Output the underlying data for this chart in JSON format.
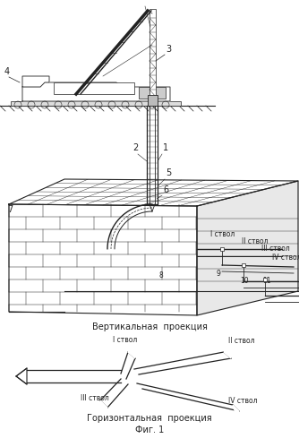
{
  "bg": "#ffffff",
  "lc": "#222222",
  "label_vert": "Вертикальная  проекция",
  "label_horiz": "Горизонтальная  проекция",
  "label_fig": "Фиг. 1",
  "fs": 7.0,
  "fs_small": 5.5
}
